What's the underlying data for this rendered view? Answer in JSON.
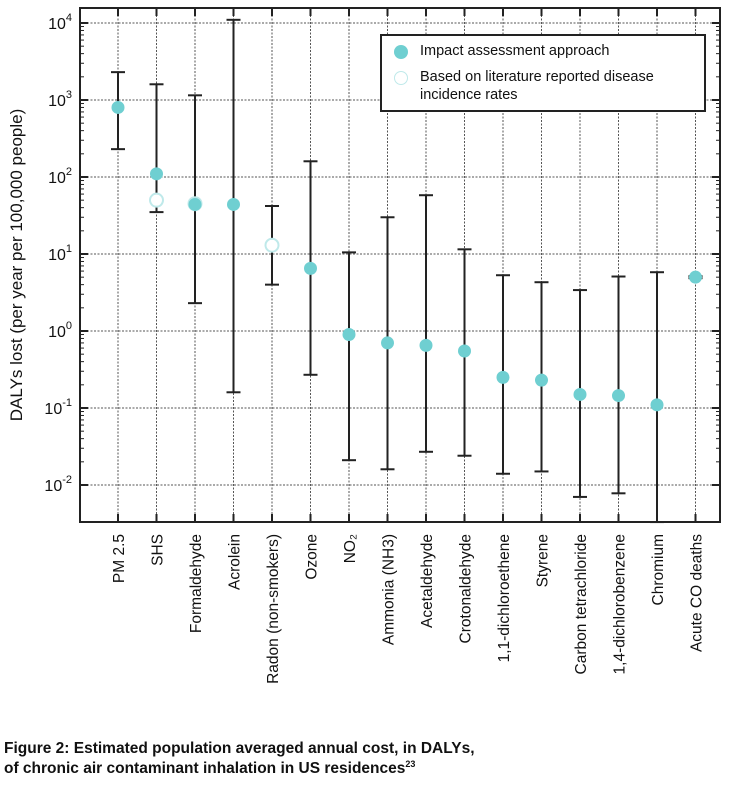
{
  "chart_data": {
    "type": "scatter",
    "ylabel": "DALYs lost (per year per 100,000 people)",
    "yscale": "log",
    "ylim": [
      0.003,
      12000
    ],
    "yticks": [
      {
        "base": "10",
        "exp": "4"
      },
      {
        "base": "10",
        "exp": "3"
      },
      {
        "base": "10",
        "exp": "2"
      },
      {
        "base": "10",
        "exp": "1"
      },
      {
        "base": "10",
        "exp": "0"
      },
      {
        "base": "10",
        "exp": "-1"
      },
      {
        "base": "10",
        "exp": "-2"
      }
    ],
    "grid": true,
    "legend_position": "top-right",
    "legend": [
      {
        "label": "Impact assessment approach",
        "style": "filled"
      },
      {
        "label": "Based on literature reported disease incidence rates",
        "style": "open"
      }
    ],
    "colors": {
      "filled": "#6fcfd1",
      "open": "#bfe9ea",
      "errorbar": "#222222"
    },
    "categories": [
      {
        "label": "PM 2.5",
        "impact": 800,
        "literature": null,
        "low": 230,
        "high": 2300
      },
      {
        "label": "SHS",
        "impact": 110,
        "literature": 50,
        "low": 35,
        "high": 1600
      },
      {
        "label": "Formaldehyde",
        "impact": 44,
        "literature": 45,
        "low": 2.3,
        "high": 1150
      },
      {
        "label": "Acrolein",
        "impact": 44,
        "literature": null,
        "low": 0.16,
        "high": 11000
      },
      {
        "label": "Radon (non-smokers)",
        "impact": null,
        "literature": 13,
        "low": 4,
        "high": 42
      },
      {
        "label": "Ozone",
        "impact": 6.5,
        "literature": null,
        "low": 0.27,
        "high": 160
      },
      {
        "label": "NO₂",
        "impact": 0.9,
        "literature": null,
        "low": 0.021,
        "high": 10.5
      },
      {
        "label": "Ammonia (NH3)",
        "impact": 0.7,
        "literature": null,
        "low": 0.016,
        "high": 30
      },
      {
        "label": "Acetaldehyde",
        "impact": 0.65,
        "literature": null,
        "low": 0.027,
        "high": 58
      },
      {
        "label": "Crotonaldehyde",
        "impact": 0.55,
        "literature": null,
        "low": 0.024,
        "high": 11.5
      },
      {
        "label": "1,1-dichloroethene",
        "impact": 0.25,
        "literature": null,
        "low": 0.014,
        "high": 5.3
      },
      {
        "label": "Styrene",
        "impact": 0.23,
        "literature": null,
        "low": 0.015,
        "high": 4.3
      },
      {
        "label": "Carbon tetrachloride",
        "impact": 0.15,
        "literature": null,
        "low": 0.007,
        "high": 3.4
      },
      {
        "label": "1,4-dichlorobenzene",
        "impact": 0.145,
        "literature": null,
        "low": 0.0078,
        "high": 5.1
      },
      {
        "label": "Chromium",
        "impact": 0.11,
        "literature": null,
        "low": 0.0033,
        "high": 5.8
      },
      {
        "label": "Acute CO deaths",
        "impact": 5,
        "literature": null,
        "low": 4.85,
        "high": 5.15
      }
    ]
  },
  "caption": {
    "line1": "Figure 2: Estimated population averaged annual cost, in DALYs,",
    "line2": "of chronic air contaminant inhalation in US residences",
    "ref": "23"
  }
}
